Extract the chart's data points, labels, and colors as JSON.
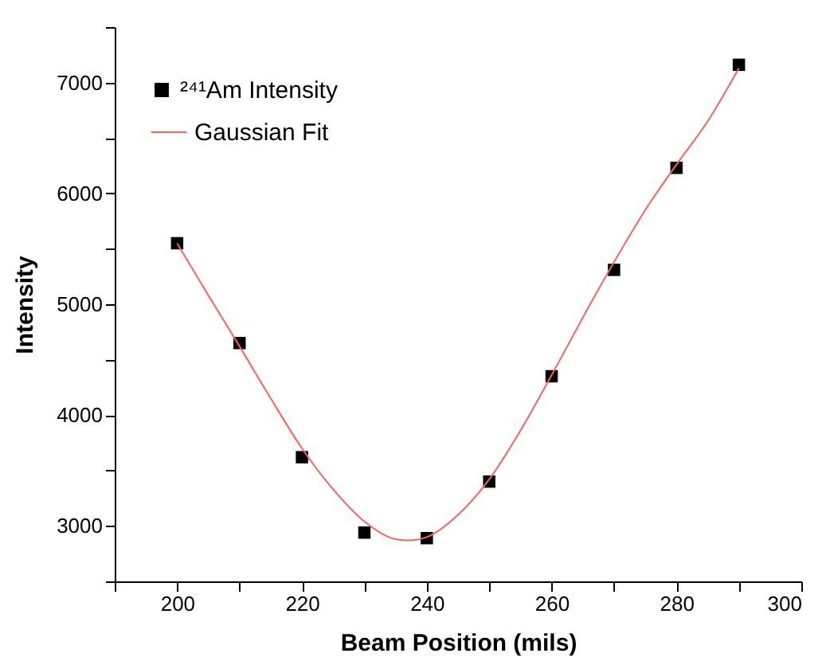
{
  "chart_data": {
    "type": "scatter",
    "xlabel": "Beam Position (mils)",
    "ylabel": "Intensity",
    "xlim": [
      190,
      300
    ],
    "ylim": [
      2500,
      7500
    ],
    "xticks": [
      {
        "value": 190,
        "label": null
      },
      200,
      {
        "value": 210,
        "label": null
      },
      220,
      {
        "value": 230,
        "label": null
      },
      240,
      {
        "value": 250,
        "label": null
      },
      260,
      {
        "value": 270,
        "label": null
      },
      280,
      {
        "value": 290,
        "label": null
      },
      300
    ],
    "yticks": [
      {
        "value": 2500,
        "label": null
      },
      3000,
      {
        "value": 3500,
        "label": null
      },
      4000,
      {
        "value": 4500,
        "label": null
      },
      5000,
      {
        "value": 5500,
        "label": null
      },
      6000,
      {
        "value": 6500,
        "label": null
      },
      7000,
      {
        "value": 7500,
        "label": null
      }
    ],
    "grid": false,
    "legend": "top left",
    "series": [
      {
        "name": "²⁴¹Am Intensity",
        "marker": "square",
        "color": "#000000",
        "x": [
          200,
          210,
          220,
          230,
          240,
          250,
          260,
          270,
          280,
          290
        ],
        "values": [
          5550,
          4650,
          3620,
          2940,
          2890,
          3400,
          4350,
          5310,
          6230,
          7160
        ]
      },
      {
        "name": "Gaussian Fit",
        "type": "line",
        "color": "#ff6060",
        "line_style": "solid",
        "marker": "none",
        "x": [
          200,
          205,
          210,
          215,
          220,
          225,
          230,
          235,
          237,
          240,
          245,
          250,
          255,
          260,
          265,
          270,
          275,
          280,
          285,
          290
        ],
        "values": [
          5550,
          5080,
          4620,
          4150,
          3700,
          3330,
          3040,
          2880,
          2870,
          2900,
          3100,
          3420,
          3860,
          4360,
          4880,
          5380,
          5850,
          6260,
          6650,
          7130
        ]
      }
    ]
  }
}
